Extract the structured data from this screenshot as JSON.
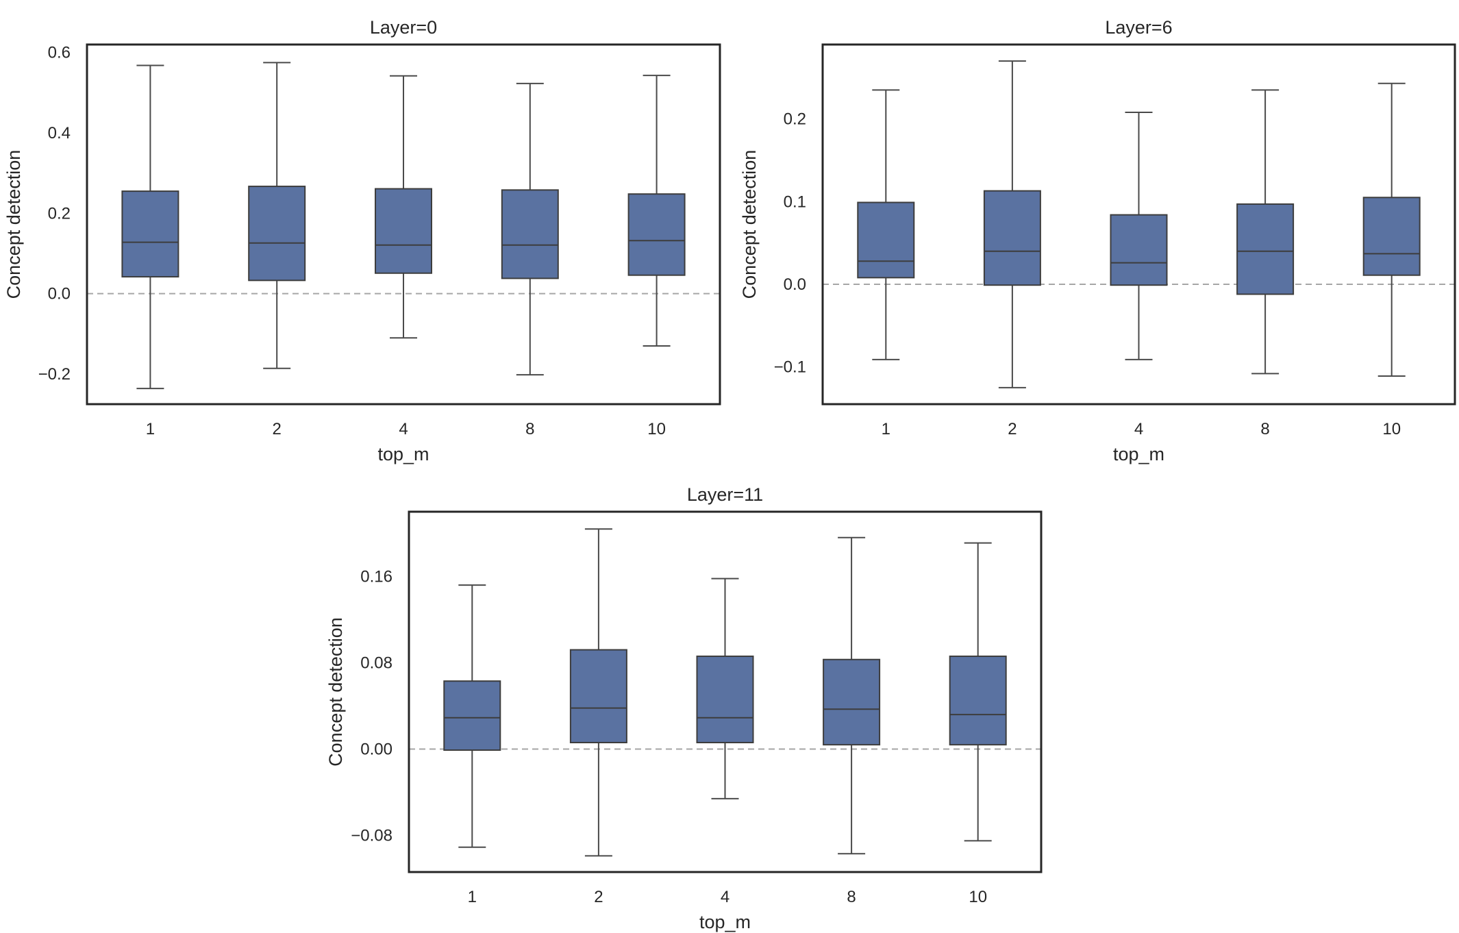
{
  "chart_data": [
    {
      "type": "box",
      "title": "Layer=0",
      "xlabel": "top_m",
      "ylabel": "Concept detection",
      "categories": [
        "1",
        "2",
        "4",
        "8",
        "10"
      ],
      "ylim": [
        -0.275,
        0.62
      ],
      "yticks": [
        -0.2,
        0.0,
        0.2,
        0.4,
        0.6
      ],
      "ytick_labels": [
        "−0.2",
        "0.0",
        "0.2",
        "0.4",
        "0.6"
      ],
      "reference_line": 0,
      "boxes": [
        {
          "whislo": -0.236,
          "q1": 0.042,
          "med": 0.128,
          "q3": 0.255,
          "whishi": 0.568
        },
        {
          "whislo": -0.186,
          "q1": 0.033,
          "med": 0.126,
          "q3": 0.267,
          "whishi": 0.575
        },
        {
          "whislo": -0.11,
          "q1": 0.051,
          "med": 0.121,
          "q3": 0.261,
          "whishi": 0.542
        },
        {
          "whislo": -0.202,
          "q1": 0.038,
          "med": 0.121,
          "q3": 0.258,
          "whishi": 0.523
        },
        {
          "whislo": -0.13,
          "q1": 0.046,
          "med": 0.132,
          "q3": 0.248,
          "whishi": 0.543
        }
      ],
      "grid": false,
      "box_color": "#5a72a1"
    },
    {
      "type": "box",
      "title": "Layer=6",
      "xlabel": "top_m",
      "ylabel": "Concept detection",
      "categories": [
        "1",
        "2",
        "4",
        "8",
        "10"
      ],
      "ylim": [
        -0.145,
        0.29
      ],
      "yticks": [
        -0.1,
        0.0,
        0.1,
        0.2
      ],
      "ytick_labels": [
        "−0.1",
        "0.0",
        "0.1",
        "0.2"
      ],
      "reference_line": 0,
      "boxes": [
        {
          "whislo": -0.091,
          "q1": 0.008,
          "med": 0.028,
          "q3": 0.099,
          "whishi": 0.235
        },
        {
          "whislo": -0.125,
          "q1": -0.001,
          "med": 0.04,
          "q3": 0.113,
          "whishi": 0.27
        },
        {
          "whislo": -0.091,
          "q1": -0.001,
          "med": 0.026,
          "q3": 0.084,
          "whishi": 0.208
        },
        {
          "whislo": -0.108,
          "q1": -0.012,
          "med": 0.04,
          "q3": 0.097,
          "whishi": 0.235
        },
        {
          "whislo": -0.111,
          "q1": 0.011,
          "med": 0.037,
          "q3": 0.105,
          "whishi": 0.243
        }
      ],
      "grid": false,
      "box_color": "#5a72a1"
    },
    {
      "type": "box",
      "title": "Layer=11",
      "xlabel": "top_m",
      "ylabel": "Concept detection",
      "categories": [
        "1",
        "2",
        "4",
        "8",
        "10"
      ],
      "ylim": [
        -0.114,
        0.22
      ],
      "yticks": [
        -0.08,
        0.0,
        0.08,
        0.16
      ],
      "ytick_labels": [
        "−0.08",
        "0.00",
        "0.08",
        "0.16"
      ],
      "reference_line": 0,
      "boxes": [
        {
          "whislo": -0.091,
          "q1": -0.001,
          "med": 0.029,
          "q3": 0.063,
          "whishi": 0.152
        },
        {
          "whislo": -0.099,
          "q1": 0.006,
          "med": 0.038,
          "q3": 0.092,
          "whishi": 0.204
        },
        {
          "whislo": -0.046,
          "q1": 0.006,
          "med": 0.029,
          "q3": 0.086,
          "whishi": 0.158
        },
        {
          "whislo": -0.097,
          "q1": 0.004,
          "med": 0.037,
          "q3": 0.083,
          "whishi": 0.196
        },
        {
          "whislo": -0.085,
          "q1": 0.004,
          "med": 0.032,
          "q3": 0.086,
          "whishi": 0.191
        }
      ],
      "grid": false,
      "box_color": "#5a72a1"
    }
  ]
}
